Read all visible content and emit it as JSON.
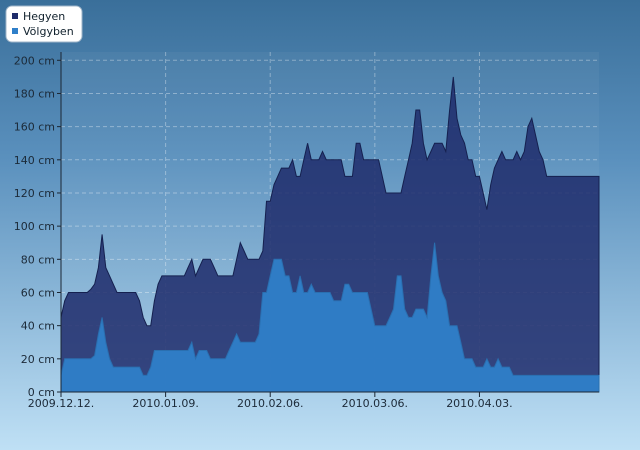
{
  "chart_data": {
    "type": "area",
    "title": "",
    "xlabel": "",
    "ylabel": "",
    "ylim": [
      0,
      205
    ],
    "xlim": [
      "2009-12-12",
      "2010-05-05"
    ],
    "grid": true,
    "legend_position": "top-left",
    "y_ticks": [
      {
        "value": 0,
        "label": "0 cm"
      },
      {
        "value": 20,
        "label": "20 cm"
      },
      {
        "value": 40,
        "label": "40 cm"
      },
      {
        "value": 60,
        "label": "60 cm"
      },
      {
        "value": 80,
        "label": "80 cm"
      },
      {
        "value": 100,
        "label": "100 cm"
      },
      {
        "value": 120,
        "label": "120 cm"
      },
      {
        "value": 140,
        "label": "140 cm"
      },
      {
        "value": 160,
        "label": "160 cm"
      },
      {
        "value": 180,
        "label": "180 cm"
      },
      {
        "value": 200,
        "label": "200 cm"
      }
    ],
    "x_ticks": [
      {
        "date": "2009-12-12",
        "label": "2009.12.12."
      },
      {
        "date": "2010-01-09",
        "label": "2010.01.09."
      },
      {
        "date": "2010-02-06",
        "label": "2010.02.06."
      },
      {
        "date": "2010-03-06",
        "label": "2010.03.06."
      },
      {
        "date": "2010-04-03",
        "label": "2010.04.03."
      }
    ],
    "series": [
      {
        "name": "Hegyen",
        "color": "#1f2c6b",
        "points": [
          [
            "2009-12-12",
            45
          ],
          [
            "2009-12-13",
            55
          ],
          [
            "2009-12-14",
            60
          ],
          [
            "2009-12-19",
            60
          ],
          [
            "2009-12-20",
            62
          ],
          [
            "2009-12-21",
            65
          ],
          [
            "2009-12-22",
            75
          ],
          [
            "2009-12-23",
            95
          ],
          [
            "2009-12-24",
            75
          ],
          [
            "2009-12-25",
            70
          ],
          [
            "2009-12-26",
            65
          ],
          [
            "2009-12-27",
            60
          ],
          [
            "2010-01-01",
            60
          ],
          [
            "2010-01-02",
            55
          ],
          [
            "2010-01-03",
            45
          ],
          [
            "2010-01-04",
            40
          ],
          [
            "2010-01-05",
            40
          ],
          [
            "2010-01-06",
            55
          ],
          [
            "2010-01-07",
            65
          ],
          [
            "2010-01-08",
            70
          ],
          [
            "2010-01-09",
            70
          ],
          [
            "2010-01-10",
            70
          ],
          [
            "2010-01-11",
            70
          ],
          [
            "2010-01-12",
            70
          ],
          [
            "2010-01-13",
            70
          ],
          [
            "2010-01-14",
            70
          ],
          [
            "2010-01-15",
            75
          ],
          [
            "2010-01-16",
            80
          ],
          [
            "2010-01-17",
            70
          ],
          [
            "2010-01-18",
            75
          ],
          [
            "2010-01-19",
            80
          ],
          [
            "2010-01-20",
            80
          ],
          [
            "2010-01-21",
            80
          ],
          [
            "2010-01-22",
            75
          ],
          [
            "2010-01-23",
            70
          ],
          [
            "2010-01-27",
            70
          ],
          [
            "2010-01-28",
            80
          ],
          [
            "2010-01-29",
            90
          ],
          [
            "2010-01-30",
            85
          ],
          [
            "2010-01-31",
            80
          ],
          [
            "2010-02-03",
            80
          ],
          [
            "2010-02-04",
            85
          ],
          [
            "2010-02-05",
            115
          ],
          [
            "2010-02-06",
            115
          ],
          [
            "2010-02-07",
            125
          ],
          [
            "2010-02-08",
            130
          ],
          [
            "2010-02-09",
            135
          ],
          [
            "2010-02-11",
            135
          ],
          [
            "2010-02-12",
            140
          ],
          [
            "2010-02-13",
            130
          ],
          [
            "2010-02-14",
            130
          ],
          [
            "2010-02-15",
            140
          ],
          [
            "2010-02-16",
            150
          ],
          [
            "2010-02-17",
            140
          ],
          [
            "2010-02-19",
            140
          ],
          [
            "2010-02-20",
            145
          ],
          [
            "2010-02-21",
            140
          ],
          [
            "2010-02-25",
            140
          ],
          [
            "2010-02-26",
            130
          ],
          [
            "2010-02-28",
            130
          ],
          [
            "2010-03-01",
            150
          ],
          [
            "2010-03-02",
            150
          ],
          [
            "2010-03-03",
            140
          ],
          [
            "2010-03-07",
            140
          ],
          [
            "2010-03-08",
            130
          ],
          [
            "2010-03-09",
            120
          ],
          [
            "2010-03-13",
            120
          ],
          [
            "2010-03-14",
            130
          ],
          [
            "2010-03-15",
            140
          ],
          [
            "2010-03-16",
            150
          ],
          [
            "2010-03-17",
            170
          ],
          [
            "2010-03-18",
            170
          ],
          [
            "2010-03-19",
            150
          ],
          [
            "2010-03-20",
            140
          ],
          [
            "2010-03-21",
            145
          ],
          [
            "2010-03-22",
            150
          ],
          [
            "2010-03-24",
            150
          ],
          [
            "2010-03-25",
            145
          ],
          [
            "2010-03-26",
            170
          ],
          [
            "2010-03-27",
            190
          ],
          [
            "2010-03-28",
            165
          ],
          [
            "2010-03-29",
            155
          ],
          [
            "2010-03-30",
            150
          ],
          [
            "2010-03-31",
            140
          ],
          [
            "2010-04-01",
            140
          ],
          [
            "2010-04-02",
            130
          ],
          [
            "2010-04-03",
            130
          ],
          [
            "2010-04-04",
            120
          ],
          [
            "2010-04-05",
            110
          ],
          [
            "2010-04-06",
            125
          ],
          [
            "2010-04-07",
            135
          ],
          [
            "2010-04-08",
            140
          ],
          [
            "2010-04-09",
            145
          ],
          [
            "2010-04-10",
            140
          ],
          [
            "2010-04-12",
            140
          ],
          [
            "2010-04-13",
            145
          ],
          [
            "2010-04-14",
            140
          ],
          [
            "2010-04-15",
            145
          ],
          [
            "2010-04-16",
            160
          ],
          [
            "2010-04-17",
            165
          ],
          [
            "2010-04-18",
            155
          ],
          [
            "2010-04-19",
            145
          ],
          [
            "2010-04-20",
            140
          ],
          [
            "2010-04-21",
            130
          ],
          [
            "2010-05-05",
            130
          ]
        ]
      },
      {
        "name": "Völgyben",
        "color": "#2f7fc9",
        "points": [
          [
            "2009-12-12",
            10
          ],
          [
            "2009-12-13",
            20
          ],
          [
            "2009-12-20",
            20
          ],
          [
            "2009-12-21",
            22
          ],
          [
            "2009-12-22",
            35
          ],
          [
            "2009-12-23",
            45
          ],
          [
            "2009-12-24",
            30
          ],
          [
            "2009-12-25",
            20
          ],
          [
            "2009-12-26",
            15
          ],
          [
            "2010-01-01",
            15
          ],
          [
            "2010-01-02",
            15
          ],
          [
            "2010-01-03",
            10
          ],
          [
            "2010-01-04",
            10
          ],
          [
            "2010-01-05",
            15
          ],
          [
            "2010-01-06",
            25
          ],
          [
            "2010-01-07",
            25
          ],
          [
            "2010-01-14",
            25
          ],
          [
            "2010-01-15",
            25
          ],
          [
            "2010-01-16",
            30
          ],
          [
            "2010-01-17",
            20
          ],
          [
            "2010-01-18",
            25
          ],
          [
            "2010-01-20",
            25
          ],
          [
            "2010-01-21",
            20
          ],
          [
            "2010-01-25",
            20
          ],
          [
            "2010-01-26",
            25
          ],
          [
            "2010-01-27",
            30
          ],
          [
            "2010-01-28",
            35
          ],
          [
            "2010-01-29",
            30
          ],
          [
            "2010-02-02",
            30
          ],
          [
            "2010-02-03",
            35
          ],
          [
            "2010-02-04",
            60
          ],
          [
            "2010-02-05",
            60
          ],
          [
            "2010-02-06",
            70
          ],
          [
            "2010-02-07",
            80
          ],
          [
            "2010-02-08",
            80
          ],
          [
            "2010-02-09",
            80
          ],
          [
            "2010-02-10",
            70
          ],
          [
            "2010-02-11",
            70
          ],
          [
            "2010-02-12",
            60
          ],
          [
            "2010-02-13",
            60
          ],
          [
            "2010-02-14",
            70
          ],
          [
            "2010-02-15",
            60
          ],
          [
            "2010-02-16",
            60
          ],
          [
            "2010-02-17",
            65
          ],
          [
            "2010-02-18",
            60
          ],
          [
            "2010-02-22",
            60
          ],
          [
            "2010-02-23",
            55
          ],
          [
            "2010-02-25",
            55
          ],
          [
            "2010-02-26",
            65
          ],
          [
            "2010-02-27",
            65
          ],
          [
            "2010-02-28",
            60
          ],
          [
            "2010-03-04",
            60
          ],
          [
            "2010-03-05",
            50
          ],
          [
            "2010-03-06",
            40
          ],
          [
            "2010-03-09",
            40
          ],
          [
            "2010-03-10",
            45
          ],
          [
            "2010-03-11",
            50
          ],
          [
            "2010-03-12",
            70
          ],
          [
            "2010-03-13",
            70
          ],
          [
            "2010-03-14",
            50
          ],
          [
            "2010-03-15",
            45
          ],
          [
            "2010-03-16",
            45
          ],
          [
            "2010-03-17",
            50
          ],
          [
            "2010-03-19",
            50
          ],
          [
            "2010-03-20",
            45
          ],
          [
            "2010-03-21",
            70
          ],
          [
            "2010-03-22",
            90
          ],
          [
            "2010-03-23",
            70
          ],
          [
            "2010-03-24",
            60
          ],
          [
            "2010-03-25",
            55
          ],
          [
            "2010-03-26",
            40
          ],
          [
            "2010-03-28",
            40
          ],
          [
            "2010-03-29",
            30
          ],
          [
            "2010-03-30",
            20
          ],
          [
            "2010-04-01",
            20
          ],
          [
            "2010-04-02",
            15
          ],
          [
            "2010-04-04",
            15
          ],
          [
            "2010-04-05",
            20
          ],
          [
            "2010-04-06",
            15
          ],
          [
            "2010-04-07",
            15
          ],
          [
            "2010-04-08",
            20
          ],
          [
            "2010-04-09",
            15
          ],
          [
            "2010-04-11",
            15
          ],
          [
            "2010-04-12",
            10
          ],
          [
            "2010-05-05",
            10
          ]
        ]
      }
    ]
  }
}
